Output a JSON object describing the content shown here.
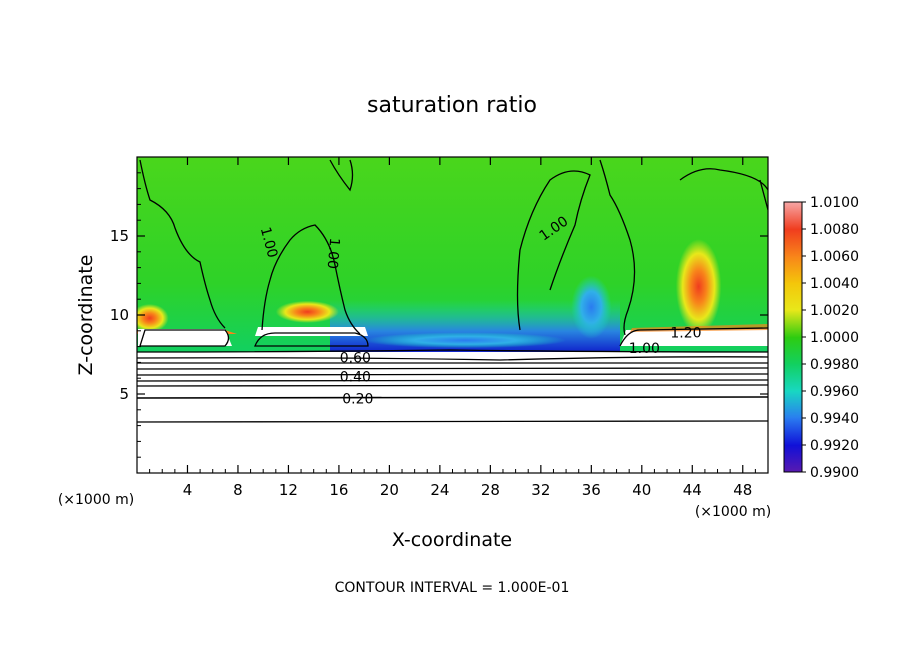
{
  "chart_data": {
    "type": "heatmap",
    "title": "saturation ratio",
    "xlabel": "X-coordinate",
    "ylabel": "Z-coordinate",
    "x_unit_label": "(×1000 m)",
    "y_unit_label": "(×1000 m)",
    "footer": "CONTOUR INTERVAL = 1.000E-01",
    "xlim": [
      0,
      50
    ],
    "ylim": [
      0,
      20
    ],
    "x_ticks": [
      4,
      8,
      12,
      16,
      20,
      24,
      28,
      32,
      36,
      40,
      44,
      48
    ],
    "y_ticks": [
      5,
      10,
      15
    ],
    "colorbar": {
      "labels": [
        "1.0100",
        "1.0080",
        "1.0060",
        "1.0040",
        "1.0020",
        "1.0000",
        "0.9980",
        "0.9960",
        "0.9940",
        "0.9920",
        "0.9900"
      ],
      "colors": [
        "#f7a7a7",
        "#f03c1e",
        "#f8841a",
        "#f4c60a",
        "#e8e81a",
        "#2ecc10",
        "#12d060",
        "#18d8c2",
        "#2a7cf0",
        "#1010d8",
        "#5a1ab0"
      ]
    },
    "contour_labels": [
      {
        "text": "1.00",
        "x": 10.5,
        "z": 14.6,
        "rotate": 75
      },
      {
        "text": "1.00",
        "x": 15.6,
        "z": 13.9,
        "rotate": 95
      },
      {
        "text": "1.00",
        "x": 33,
        "z": 15.5,
        "rotate": -35
      },
      {
        "text": "1.20",
        "x": 43.5,
        "z": 8.9,
        "rotate": 0
      },
      {
        "text": "1.00",
        "x": 40.2,
        "z": 7.9,
        "rotate": 0
      },
      {
        "text": "0.60",
        "x": 17.3,
        "z": 7.3,
        "rotate": 0
      },
      {
        "text": "0.40",
        "x": 17.3,
        "z": 6.1,
        "rotate": 0
      },
      {
        "text": "0.20",
        "x": 17.5,
        "z": 4.7,
        "rotate": 0
      }
    ],
    "color_regions": [
      {
        "x": 36,
        "z": 10.5,
        "rx": 1.6,
        "rz": 2.0,
        "value": 0.994
      },
      {
        "x": 26,
        "z": 8.4,
        "rx": 8,
        "rz": 0.5,
        "value": 0.992
      },
      {
        "x": 44.5,
        "z": 11.8,
        "rx": 1.8,
        "rz": 3,
        "value": 1.006
      },
      {
        "x": 13.5,
        "z": 10.2,
        "rx": 2.5,
        "rz": 0.7,
        "value": 1.005
      },
      {
        "x": 1,
        "z": 9.8,
        "rx": 1.5,
        "rz": 0.9,
        "value": 1.005
      }
    ]
  }
}
